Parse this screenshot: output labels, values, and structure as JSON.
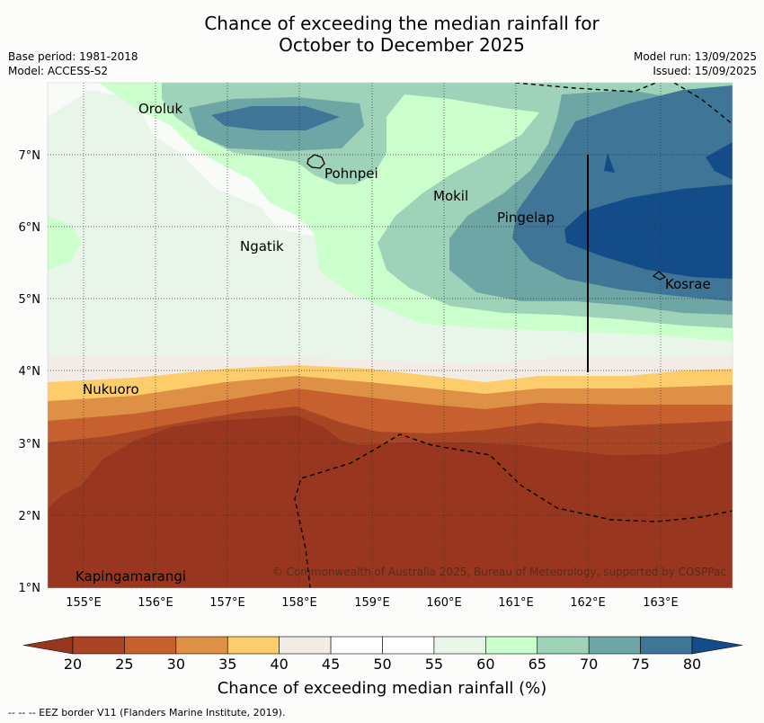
{
  "header": {
    "title_line1": "Chance of exceeding the median rainfall for",
    "title_line2": "October to December 2025",
    "base_period": "Base period: 1981-2018",
    "model": "Model: ACCESS-S2",
    "model_run": "Model run: 13/09/2025",
    "issued": "Issued: 15/09/2025"
  },
  "map": {
    "lon_ticks": [
      "155°E",
      "156°E",
      "157°E",
      "158°E",
      "159°E",
      "160°E",
      "161°E",
      "162°E",
      "163°E"
    ],
    "lat_ticks": [
      "7°N",
      "6°N",
      "5°N",
      "4°N",
      "3°N",
      "2°N",
      "1°N"
    ],
    "places": [
      {
        "name": "Oroluk"
      },
      {
        "name": "Pohnpei"
      },
      {
        "name": "Mokil"
      },
      {
        "name": "Pingelap"
      },
      {
        "name": "Ngatik"
      },
      {
        "name": "Kosrae"
      },
      {
        "name": "Nukuoro"
      },
      {
        "name": "Kapingamarangi"
      }
    ],
    "copyright": "© Commonwealth of Australia 2025, Bureau of Meteorology, supported by COSPPac"
  },
  "colorbar": {
    "ticks": [
      "20",
      "25",
      "30",
      "35",
      "40",
      "45",
      "50",
      "55",
      "60",
      "65",
      "70",
      "75",
      "80"
    ],
    "colors": [
      "#a84525",
      "#c7602f",
      "#df9047",
      "#fdcd6c",
      "#f2ebe6",
      "#ffffff",
      "#ffffff",
      "#eaf5e9",
      "#cbffcb",
      "#9ed2b9",
      "#6ea6a6",
      "#3f7597"
    ],
    "under_color": "#983620",
    "over_color": "#134c88",
    "label": "Chance of exceeding median rainfall (%)"
  },
  "footnote": "--  --  -- EEZ border V11 (Flanders Marine Institute, 2019)."
}
